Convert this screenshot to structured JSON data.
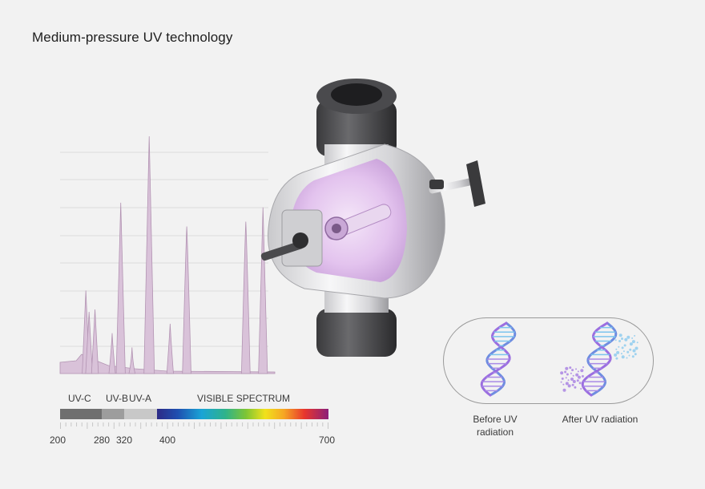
{
  "title": "Medium-pressure UV technology",
  "bands": {
    "uvc": "UV-C",
    "uvb": "UV-B",
    "uva": "UV-A",
    "visible": "VISIBLE SPECTRUM"
  },
  "wavelength_ticks": [
    "200",
    "280",
    "320",
    "400",
    "700"
  ],
  "dna": {
    "before": "Before UV radiation",
    "after": "After UV radiation"
  },
  "colors": {
    "spectrum_fill": "#d9c2d9",
    "spectrum_stroke": "#b394b3",
    "uvc_bar": "#6f6f6f",
    "uvb_bar": "#9d9d9d",
    "uva_bar": "#c8c8c8",
    "uv_glow": "#e6c8f0"
  },
  "chart_data": {
    "type": "area",
    "x_range": [
      200,
      700
    ],
    "peaks": [
      {
        "x": 248,
        "y": 0.35
      },
      {
        "x": 254,
        "y": 0.26
      },
      {
        "x": 265,
        "y": 0.27
      },
      {
        "x": 297,
        "y": 0.17
      },
      {
        "x": 313,
        "y": 0.72
      },
      {
        "x": 334,
        "y": 0.11
      },
      {
        "x": 366,
        "y": 1.0
      },
      {
        "x": 405,
        "y": 0.21
      },
      {
        "x": 436,
        "y": 0.62
      },
      {
        "x": 546,
        "y": 0.64
      },
      {
        "x": 578,
        "y": 0.7
      }
    ]
  }
}
